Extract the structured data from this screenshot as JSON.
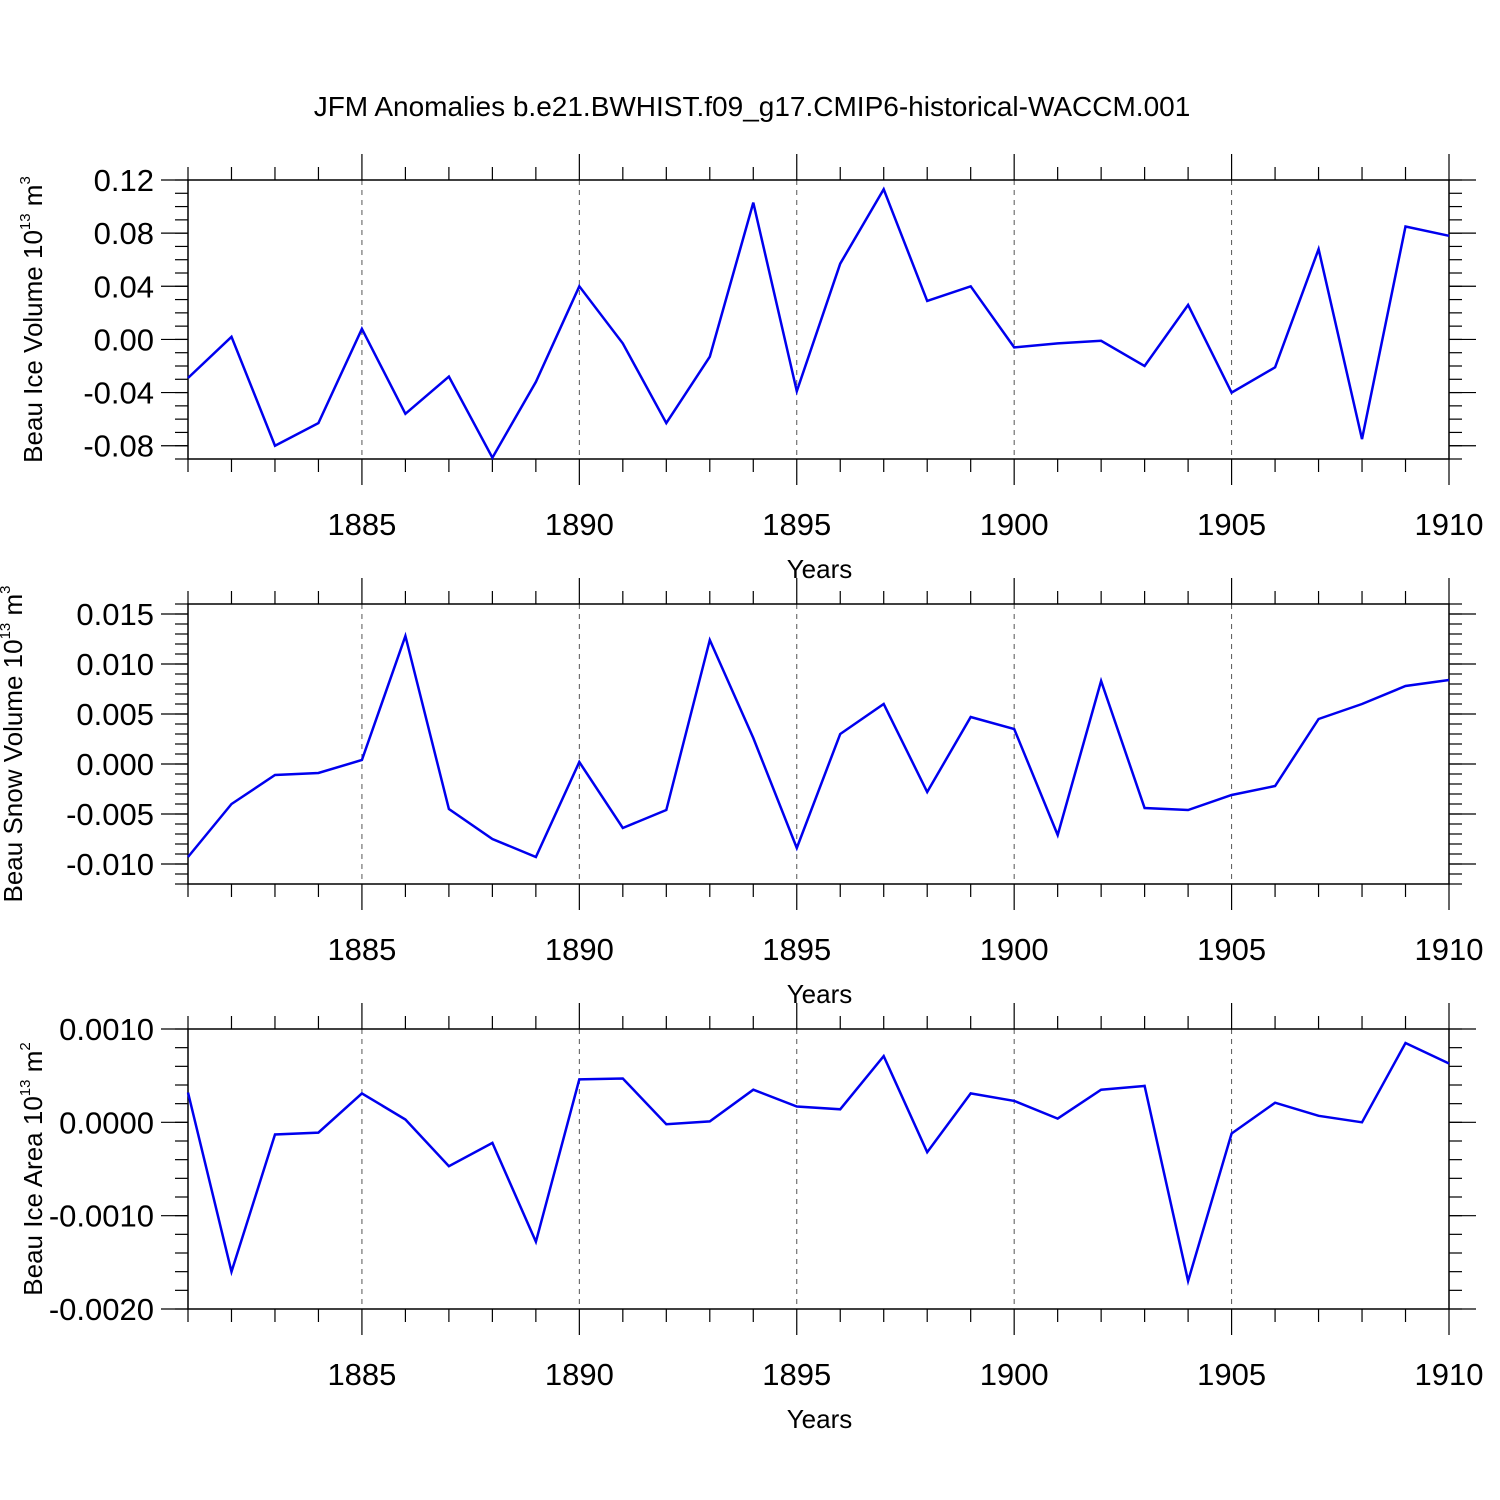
{
  "title": "JFM Anomalies b.e21.BWHIST.f09_g17.CMIP6-historical-WACCM.001",
  "colors": {
    "series": "#0000ee",
    "grid": "#555555",
    "axis": "#000000"
  },
  "chart_data": [
    {
      "type": "line",
      "ylabel": {
        "main": "Beau Ice Volume 10",
        "sup": "13",
        "unit": " m",
        "unit_sup": "3"
      },
      "xlabel": "Years",
      "xlim": [
        1881,
        1910
      ],
      "ylim": [
        -0.09,
        0.12
      ],
      "xticks": [
        1885,
        1890,
        1895,
        1900,
        1905,
        1910
      ],
      "yticks": [
        -0.08,
        -0.04,
        0.0,
        0.04,
        0.08,
        0.12
      ],
      "ytick_labels": [
        "-0.08",
        "-0.04",
        "0.00",
        "0.04",
        "0.08",
        "0.12"
      ],
      "y_minor_step": 0.01,
      "grid": "x-dashed",
      "x": [
        1881,
        1882,
        1883,
        1884,
        1885,
        1886,
        1887,
        1888,
        1889,
        1890,
        1891,
        1892,
        1893,
        1894,
        1895,
        1896,
        1897,
        1898,
        1899,
        1900,
        1901,
        1902,
        1903,
        1904,
        1905,
        1906,
        1907,
        1908,
        1909,
        1910
      ],
      "y": [
        -0.029,
        0.002,
        -0.08,
        -0.063,
        0.008,
        -0.056,
        -0.028,
        -0.089,
        -0.032,
        0.04,
        -0.003,
        -0.063,
        -0.013,
        0.103,
        -0.039,
        0.057,
        0.113,
        0.029,
        0.04,
        -0.006,
        -0.003,
        -0.001,
        -0.02,
        0.026,
        -0.04,
        -0.021,
        0.068,
        -0.075,
        0.085,
        0.078
      ]
    },
    {
      "type": "line",
      "ylabel": {
        "main": "Beau Snow Volume 10",
        "sup": "13",
        "unit": " m",
        "unit_sup": "3"
      },
      "xlabel": "Years",
      "xlim": [
        1881,
        1910
      ],
      "ylim": [
        -0.012,
        0.016
      ],
      "xticks": [
        1885,
        1890,
        1895,
        1900,
        1905,
        1910
      ],
      "yticks": [
        -0.01,
        -0.005,
        0.0,
        0.005,
        0.01,
        0.015
      ],
      "ytick_labels": [
        "-0.010",
        "-0.005",
        "0.000",
        "0.005",
        "0.010",
        "0.015"
      ],
      "y_minor_step": 0.001,
      "grid": "x-dashed",
      "x": [
        1881,
        1882,
        1883,
        1884,
        1885,
        1886,
        1887,
        1888,
        1889,
        1890,
        1891,
        1892,
        1893,
        1894,
        1895,
        1896,
        1897,
        1898,
        1899,
        1900,
        1901,
        1902,
        1903,
        1904,
        1905,
        1906,
        1907,
        1908,
        1909,
        1910
      ],
      "y": [
        -0.0093,
        -0.004,
        -0.0011,
        -0.0009,
        0.0004,
        0.0128,
        -0.0045,
        -0.0075,
        -0.0093,
        0.0002,
        -0.0064,
        -0.0046,
        0.0124,
        0.0026,
        -0.0084,
        0.003,
        0.006,
        -0.0028,
        0.0047,
        0.0035,
        -0.0071,
        0.0083,
        -0.0044,
        -0.0046,
        -0.0031,
        -0.0022,
        0.0045,
        0.006,
        0.0078,
        0.0084
      ]
    },
    {
      "type": "line",
      "ylabel": {
        "main": "Beau Ice Area 10",
        "sup": "13",
        "unit": " m",
        "unit_sup": "2"
      },
      "xlabel": "Years",
      "xlim": [
        1881,
        1910
      ],
      "ylim": [
        -0.002,
        0.001
      ],
      "xticks": [
        1885,
        1890,
        1895,
        1900,
        1905,
        1910
      ],
      "yticks": [
        -0.002,
        -0.001,
        0.0,
        0.001
      ],
      "ytick_labels": [
        "-0.0020",
        "-0.0010",
        "0.0000",
        "0.0010"
      ],
      "y_minor_step": 0.0002,
      "grid": "x-dashed",
      "x": [
        1881,
        1882,
        1883,
        1884,
        1885,
        1886,
        1887,
        1888,
        1889,
        1890,
        1891,
        1892,
        1893,
        1894,
        1895,
        1896,
        1897,
        1898,
        1899,
        1900,
        1901,
        1902,
        1903,
        1904,
        1905,
        1906,
        1907,
        1908,
        1909,
        1910
      ],
      "y": [
        0.00032,
        -0.0016,
        -0.00013,
        -0.00011,
        0.00031,
        3e-05,
        -0.00047,
        -0.00022,
        -0.00128,
        0.00046,
        0.00047,
        -2e-05,
        1e-05,
        0.00035,
        0.00017,
        0.00014,
        0.00071,
        -0.00032,
        0.00031,
        0.00023,
        4e-05,
        0.00035,
        0.00039,
        -0.0017,
        -0.00012,
        0.00021,
        7e-05,
        0.0,
        0.00085,
        0.00063
      ]
    }
  ]
}
